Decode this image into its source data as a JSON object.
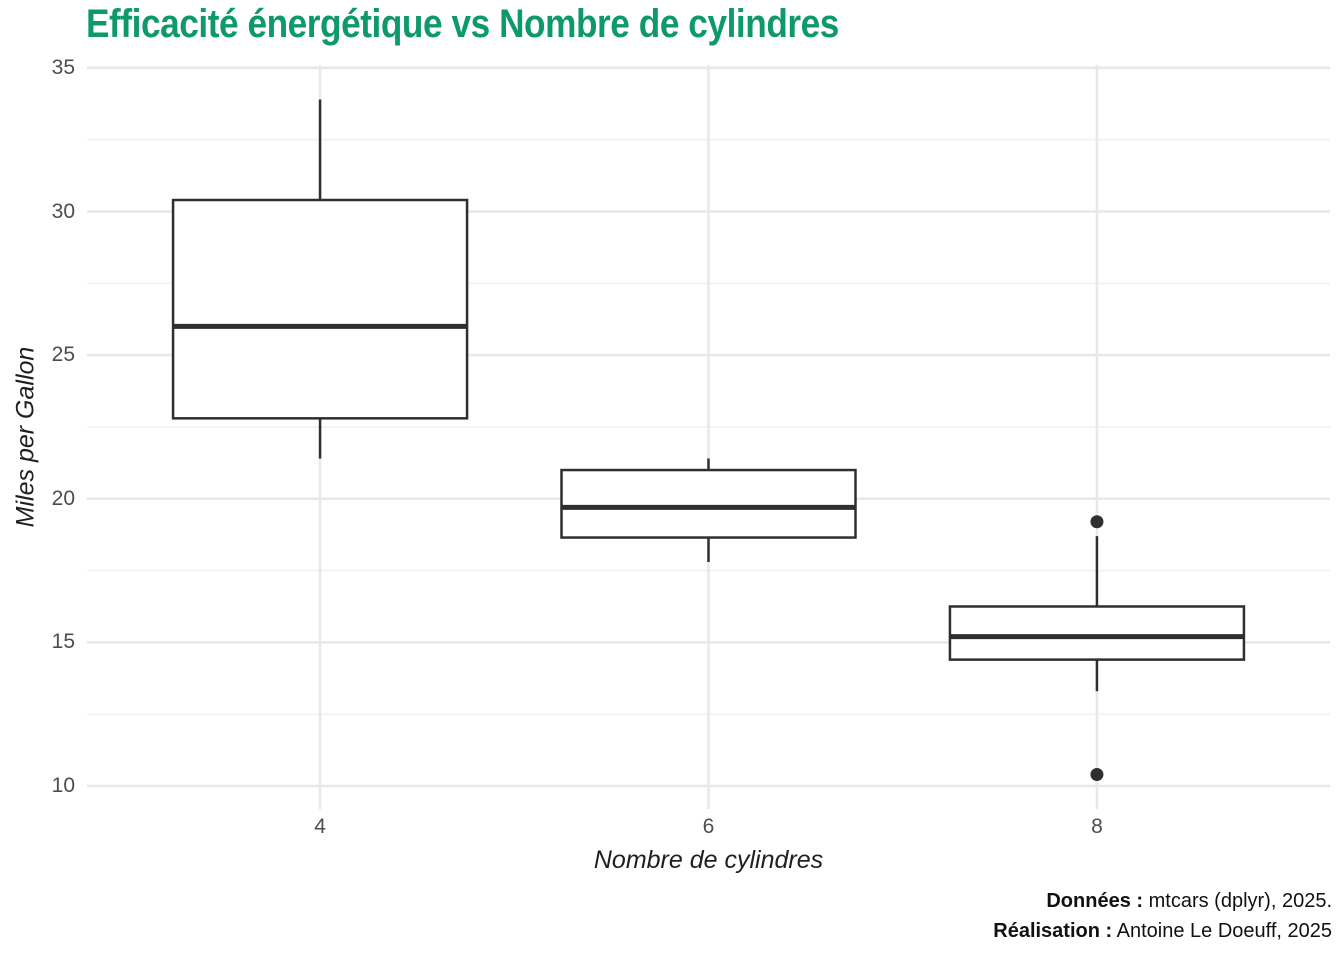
{
  "title": {
    "text": "Efficacité énergétique vs Nombre de cylindres",
    "color": "#0d9a68"
  },
  "chart_data": {
    "type": "boxplot",
    "title": "Efficacité énergétique vs Nombre de cylindres",
    "xlabel": "Nombre de cylindres",
    "ylabel": "Miles per Gallon",
    "categories": [
      "4",
      "6",
      "8"
    ],
    "boxes": [
      {
        "category": "4",
        "whisker_low": 21.4,
        "q1": 22.8,
        "median": 26.0,
        "q3": 30.4,
        "whisker_high": 33.9,
        "outliers": []
      },
      {
        "category": "6",
        "whisker_low": 17.8,
        "q1": 18.65,
        "median": 19.7,
        "q3": 21.0,
        "whisker_high": 21.4,
        "outliers": []
      },
      {
        "category": "8",
        "whisker_low": 13.3,
        "q1": 14.4,
        "median": 15.2,
        "q3": 16.25,
        "whisker_high": 18.7,
        "outliers": [
          19.2,
          10.4
        ]
      }
    ],
    "ylim": [
      9.2,
      35.1
    ],
    "yticks": [
      10,
      15,
      20,
      25,
      30,
      35
    ],
    "yticks_minor": [
      12.5,
      17.5,
      22.5,
      27.5,
      32.5
    ],
    "grid": "horizontal major+minor, vertical major at each category",
    "legend": "none"
  },
  "caption": {
    "line1": {
      "label": "Données :",
      "text": "mtcars (dplyr), 2025."
    },
    "line2": {
      "label": "Réalisation :",
      "text": "Antoine Le Doeuff, 2025"
    }
  },
  "colors": {
    "title": "#0d9a68",
    "box_stroke": "#2f2f2f",
    "box_fill": "#ffffff",
    "grid_major": "#e8e8e8",
    "grid_minor": "#f3f3f3",
    "axis_text": "#4d4d4d",
    "axis_title": "#1f1f1f",
    "caption_text": "#111111",
    "background": "#ffffff"
  }
}
